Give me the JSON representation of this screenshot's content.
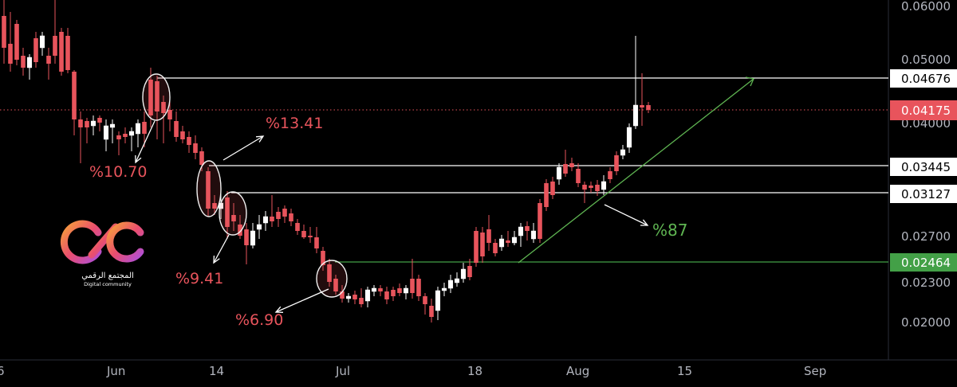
{
  "chart_data": {
    "type": "candlestick",
    "y_axis_ticks": [
      "0.06000",
      "0.05000",
      "0.04000",
      "0.02700",
      "0.02300",
      "0.02000"
    ],
    "x_axis_ticks": [
      "6",
      "Jun",
      "14",
      "Jul",
      "18",
      "Aug",
      "15",
      "Sep"
    ],
    "price_levels": [
      {
        "value": "0.04676",
        "color": "#ffffff",
        "text_color": "#000000",
        "line": "#ffffff"
      },
      {
        "value": "0.04175",
        "color": "#e8545c",
        "text_color": "#ffffff",
        "line": "#e8545c"
      },
      {
        "value": "0.03445",
        "color": "#ffffff",
        "text_color": "#000000",
        "line": "#ffffff"
      },
      {
        "value": "0.03127",
        "color": "#ffffff",
        "text_color": "#000000",
        "line": "#ffffff"
      },
      {
        "value": "0.02464",
        "color": "#43a047",
        "text_color": "#ffffff",
        "line": "#43a047"
      }
    ],
    "annotations": [
      {
        "text": "%10.70",
        "color": "red"
      },
      {
        "text": "%13.41",
        "color": "red"
      },
      {
        "text": "%9.41",
        "color": "red"
      },
      {
        "text": "%6.90",
        "color": "red"
      },
      {
        "text": "%87",
        "color": "green"
      }
    ],
    "colors": {
      "up": "#ffffff",
      "down": "#e8545c",
      "background": "#000000",
      "trend": "#5fb552"
    }
  },
  "logo": {
    "title_ar": "المجتمع الرقمي",
    "subtitle": "Digital community"
  }
}
